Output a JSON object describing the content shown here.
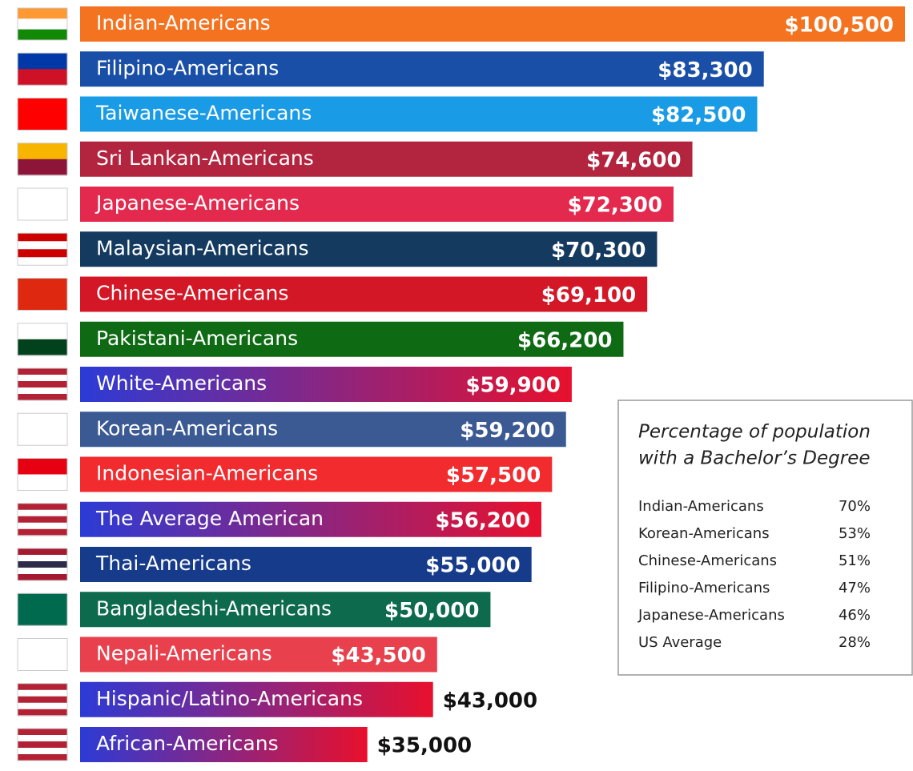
{
  "chart_data": {
    "type": "bar",
    "orientation": "horizontal",
    "categories": [
      "Indian-Americans",
      "Filipino-Americans",
      "Taiwanese-Americans",
      "Sri Lankan-Americans",
      "Japanese-Americans",
      "Malaysian-Americans",
      "Chinese-Americans",
      "Pakistani-Americans",
      "White-Americans",
      "Korean-Americans",
      "Indonesian-Americans",
      "The Average American",
      "Thai-Americans",
      "Bangladeshi-Americans",
      "Nepali-Americans",
      "Hispanic/Latino-Americans",
      "African-Americans"
    ],
    "values": [
      100500,
      83300,
      82500,
      74600,
      72300,
      70300,
      69100,
      66200,
      59900,
      59200,
      57500,
      56200,
      55000,
      50000,
      43500,
      43000,
      35000
    ],
    "value_labels": [
      "$100,500",
      "$83,300",
      "$82,500",
      "$74,600",
      "$72,300",
      "$70,300",
      "$69,100",
      "$66,200",
      "$59,900",
      "$59,200",
      "$57,500",
      "$56,200",
      "$55,000",
      "$50,000",
      "$43,500",
      "$43,000",
      "$35,000"
    ],
    "colors": [
      "#f47321",
      "#1a4fa8",
      "#1a9be6",
      "#b3243f",
      "#e32a4e",
      "#153a60",
      "#d41726",
      "#0f6a14",
      [
        "#2c3bd6",
        "#e8102d"
      ],
      "#3b5a94",
      "#f22b2f",
      [
        "#2c3bd6",
        "#e8102d"
      ],
      "#163b8a",
      "#0d6a4c",
      "#e8404c",
      [
        "#2c3bd6",
        "#e8102d"
      ],
      [
        "#2c3bd6",
        "#e8102d"
      ]
    ],
    "value_label_position": [
      "inside",
      "inside",
      "inside",
      "inside",
      "inside",
      "inside",
      "inside",
      "inside",
      "inside",
      "inside",
      "inside",
      "inside",
      "inside",
      "inside",
      "inside",
      "outside",
      "outside"
    ]
  },
  "inset": {
    "title": [
      "Percentage of population",
      "with a Bachelor’s Degree"
    ],
    "rows": [
      [
        "Indian-Americans",
        "70%"
      ],
      [
        "Korean-Americans",
        "53%"
      ],
      [
        "Chinese-Americans",
        "51%"
      ],
      [
        "Filipino-Americans",
        "47%"
      ],
      [
        "Japanese-Americans",
        "46%"
      ],
      [
        "US Average",
        "28%"
      ]
    ]
  }
}
